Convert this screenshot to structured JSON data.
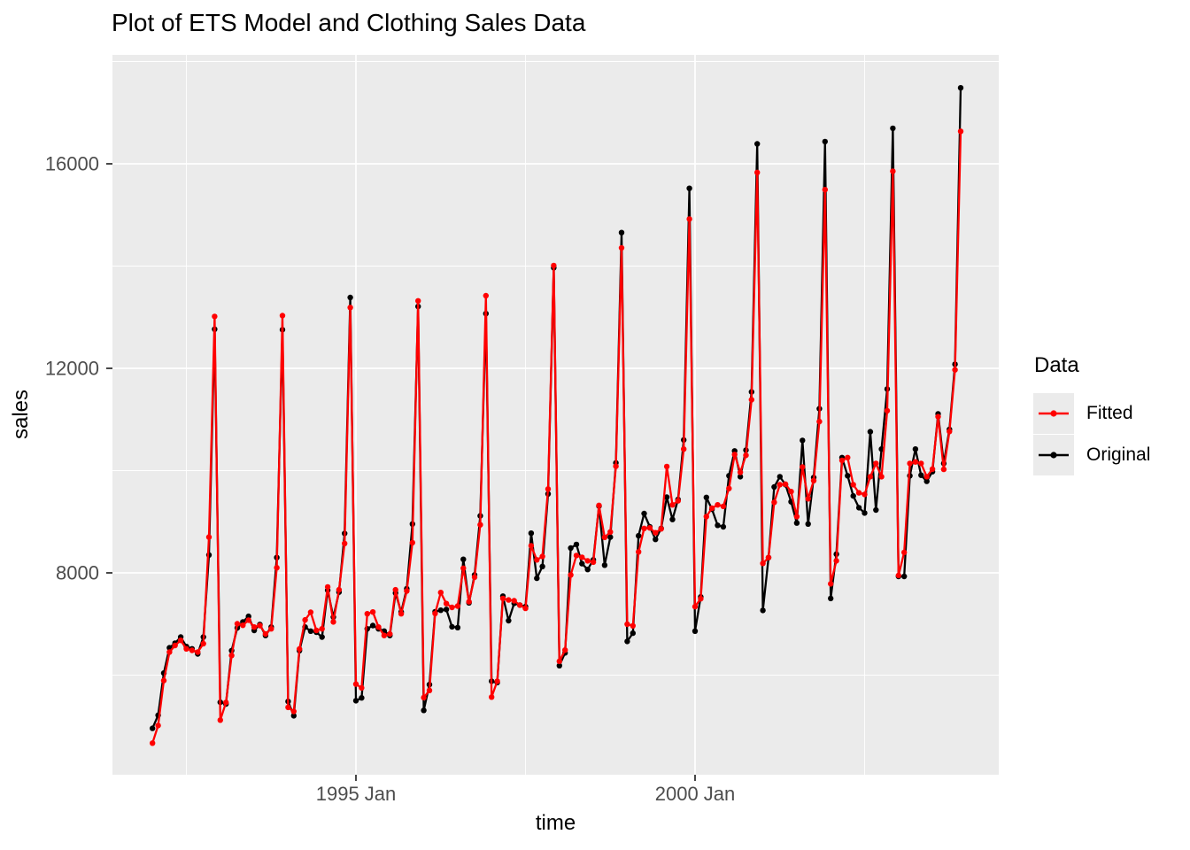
{
  "title": "Plot of ETS Model and Clothing Sales Data",
  "axes": {
    "x_title": "time",
    "y_title": "sales"
  },
  "legend": {
    "title": "Data",
    "entries": [
      {
        "label": "Fitted",
        "color": "#FF0000"
      },
      {
        "label": "Original",
        "color": "#000000"
      }
    ]
  },
  "colors": {
    "figure_background": "#FFFFFF",
    "panel_background": "#EBEBEB",
    "gridline": "#FFFFFF",
    "axis_text": "#4D4D4D",
    "tick_mark": "#333333",
    "legend_key_background": "#EBEBEB"
  },
  "chart_data": {
    "type": "line",
    "title": "Plot of ETS Model and Clothing Sales Data",
    "xlabel": "time",
    "ylabel": "sales",
    "x_unit": "monthly",
    "x_start": "1992 Jan",
    "x_end": "2003 Dec",
    "n_points_per_series": 144,
    "grid": true,
    "legend_position": "right",
    "x_axis": {
      "major_ticks": [
        {
          "t": 1995.0,
          "label": "1995 Jan"
        },
        {
          "t": 2000.0,
          "label": "2000 Jan"
        }
      ],
      "minor_gridlines": [
        1992.5,
        1997.5,
        2002.5
      ]
    },
    "y_axis": {
      "major_ticks": [
        {
          "v": 8000,
          "label": "8000"
        },
        {
          "v": 12000,
          "label": "12000"
        },
        {
          "v": 16000,
          "label": "16000"
        }
      ],
      "minor_gridlines": [
        6000,
        10000,
        14000,
        18000
      ],
      "range": [
        4050,
        18130
      ]
    },
    "series": [
      {
        "name": "Original",
        "color": "#000000",
        "values": [
          4960,
          5215,
          6040,
          6535,
          6625,
          6745,
          6560,
          6515,
          6415,
          6745,
          8350,
          12765,
          5470,
          5435,
          6480,
          6925,
          7040,
          7150,
          6875,
          6990,
          6775,
          6940,
          8300,
          12755,
          5485,
          5205,
          6480,
          6940,
          6860,
          6840,
          6745,
          7660,
          7135,
          7625,
          8770,
          13385,
          5500,
          5555,
          6905,
          6970,
          6905,
          6860,
          6775,
          7605,
          7235,
          7690,
          8955,
          13210,
          5310,
          5815,
          7240,
          7270,
          7285,
          6945,
          6930,
          8265,
          7415,
          7960,
          9115,
          13070,
          5880,
          5855,
          7545,
          7065,
          7405,
          7370,
          7340,
          8775,
          7895,
          8125,
          9545,
          13965,
          6185,
          6435,
          8485,
          8555,
          8180,
          8065,
          8255,
          9305,
          8150,
          8700,
          10150,
          14655,
          6660,
          6820,
          8725,
          9160,
          8900,
          8655,
          8870,
          9480,
          9045,
          9435,
          10600,
          15520,
          6860,
          7530,
          9475,
          9245,
          8930,
          8900,
          9900,
          10385,
          9880,
          10400,
          11540,
          16390,
          7265,
          8300,
          9680,
          9880,
          9725,
          9390,
          8975,
          10590,
          8955,
          9865,
          11210,
          16435,
          7500,
          8365,
          10255,
          9900,
          9505,
          9275,
          9170,
          10760,
          9230,
          10420,
          11595,
          16695,
          7930,
          7930,
          9900,
          10420,
          9910,
          9790,
          9980,
          11110,
          10140,
          10805,
          12080,
          17485
        ]
      },
      {
        "name": "Fitted",
        "color": "#FF0000",
        "values": [
          4670,
          5015,
          5895,
          6450,
          6580,
          6680,
          6515,
          6485,
          6450,
          6615,
          8700,
          13015,
          5120,
          5465,
          6385,
          7005,
          6975,
          7075,
          6940,
          6970,
          6805,
          6905,
          8100,
          13030,
          5370,
          5290,
          6510,
          7080,
          7230,
          6875,
          6905,
          7725,
          7040,
          7670,
          8575,
          13190,
          5825,
          5750,
          7200,
          7235,
          6940,
          6775,
          6805,
          7670,
          7200,
          7645,
          8590,
          13320,
          5560,
          5700,
          7205,
          7615,
          7400,
          7325,
          7350,
          8090,
          7435,
          7915,
          8940,
          13420,
          5570,
          5880,
          7500,
          7470,
          7455,
          7370,
          7305,
          8530,
          8255,
          8320,
          9640,
          14010,
          6270,
          6490,
          7960,
          8340,
          8305,
          8235,
          8210,
          9320,
          8695,
          8800,
          10085,
          14355,
          6995,
          6965,
          8410,
          8870,
          8880,
          8785,
          8860,
          10080,
          9330,
          9410,
          10420,
          14920,
          7340,
          7495,
          9100,
          9265,
          9330,
          9300,
          9650,
          10315,
          9965,
          10300,
          11385,
          15830,
          8185,
          8300,
          9380,
          9725,
          9735,
          9590,
          9100,
          10070,
          9450,
          9805,
          10960,
          15495,
          7785,
          8235,
          10200,
          10255,
          9725,
          9565,
          9535,
          9880,
          10140,
          9880,
          11170,
          15855,
          7950,
          8400,
          10140,
          10170,
          10140,
          9880,
          10030,
          11055,
          10025,
          10765,
          11970,
          16635
        ]
      }
    ]
  }
}
